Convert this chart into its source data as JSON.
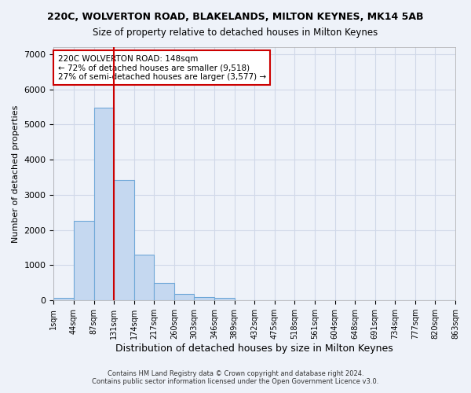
{
  "title": "220C, WOLVERTON ROAD, BLAKELANDS, MILTON KEYNES, MK14 5AB",
  "subtitle": "Size of property relative to detached houses in Milton Keynes",
  "xlabel": "Distribution of detached houses by size in Milton Keynes",
  "ylabel": "Number of detached properties",
  "footer_line1": "Contains HM Land Registry data © Crown copyright and database right 2024.",
  "footer_line2": "Contains public sector information licensed under the Open Government Licence v3.0.",
  "bin_labels": [
    "1sqm",
    "44sqm",
    "87sqm",
    "131sqm",
    "174sqm",
    "217sqm",
    "260sqm",
    "303sqm",
    "346sqm",
    "389sqm",
    "432sqm",
    "475sqm",
    "518sqm",
    "561sqm",
    "604sqm",
    "648sqm",
    "691sqm",
    "734sqm",
    "777sqm",
    "820sqm",
    "863sqm"
  ],
  "bar_values": [
    75,
    2270,
    5480,
    3420,
    1310,
    490,
    175,
    90,
    65,
    0,
    0,
    0,
    0,
    0,
    0,
    0,
    0,
    0,
    0,
    0
  ],
  "bar_color": "#c5d8f0",
  "bar_edge_color": "#6fa8d8",
  "grid_color": "#d0d8e8",
  "background_color": "#eef2f9",
  "property_size": 148,
  "property_bin_index": 3,
  "red_line_color": "#cc0000",
  "annotation_text_line1": "220C WOLVERTON ROAD: 148sqm",
  "annotation_text_line2": "← 72% of detached houses are smaller (9,518)",
  "annotation_text_line3": "27% of semi-detached houses are larger (3,577) →",
  "annotation_box_color": "white",
  "annotation_box_edge": "#cc0000",
  "ylim": [
    0,
    7200
  ],
  "yticks": [
    0,
    1000,
    2000,
    3000,
    4000,
    5000,
    6000,
    7000
  ]
}
